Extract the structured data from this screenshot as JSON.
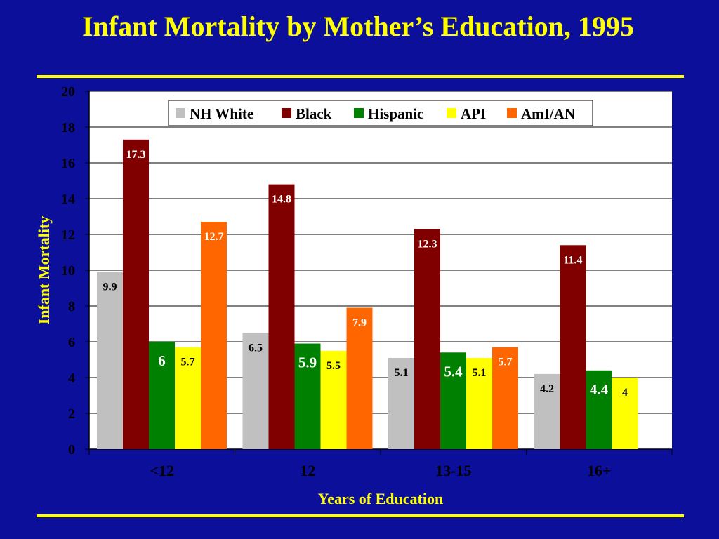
{
  "slide": {
    "title": "Infant Mortality by Mother’s Education, 1995"
  },
  "colors": {
    "background": "#0b0f99",
    "title": "#ffff00",
    "rule": "#ffff00",
    "plot_area": "#ffffff",
    "axis_text": "#000000",
    "axis_title": "#ffff00"
  },
  "chart_data": {
    "type": "bar",
    "title": "",
    "xlabel": "Years of Education",
    "ylabel": "Infant Mortality",
    "ylim": [
      0,
      20
    ],
    "yticks": [
      0,
      2,
      4,
      6,
      8,
      10,
      12,
      14,
      16,
      18,
      20
    ],
    "grid": true,
    "legend_position": "top",
    "categories": [
      "<12",
      "12",
      "13-15",
      "16+"
    ],
    "series": [
      {
        "name": "NH White",
        "color": "#c0c0c0",
        "values": [
          9.9,
          6.5,
          5.1,
          4.2
        ],
        "labels": [
          "9.9",
          "6.5",
          "5.1",
          "4.2"
        ],
        "label_color": "#000000"
      },
      {
        "name": "Black",
        "color": "#800000",
        "values": [
          17.3,
          14.8,
          12.3,
          11.4
        ],
        "labels": [
          "17.3",
          "14.8",
          "12.3",
          "11.4"
        ],
        "label_color": "#ffffff"
      },
      {
        "name": "Hispanic",
        "color": "#008000",
        "values": [
          6,
          5.9,
          5.4,
          4.4
        ],
        "labels": [
          "6",
          "5.9",
          "5.4",
          "4.4"
        ],
        "label_color": "#ffffff"
      },
      {
        "name": "API",
        "color": "#ffff00",
        "values": [
          5.7,
          5.5,
          5.1,
          4
        ],
        "labels": [
          "5.7",
          "5.5",
          "5.1",
          "4"
        ],
        "label_color": "#000000"
      },
      {
        "name": "AmI/AN",
        "color": "#ff6600",
        "values": [
          12.7,
          7.9,
          5.7,
          null
        ],
        "labels": [
          "12.7",
          "7.9",
          "5.7",
          ""
        ],
        "label_color": "#ffffff"
      }
    ]
  }
}
